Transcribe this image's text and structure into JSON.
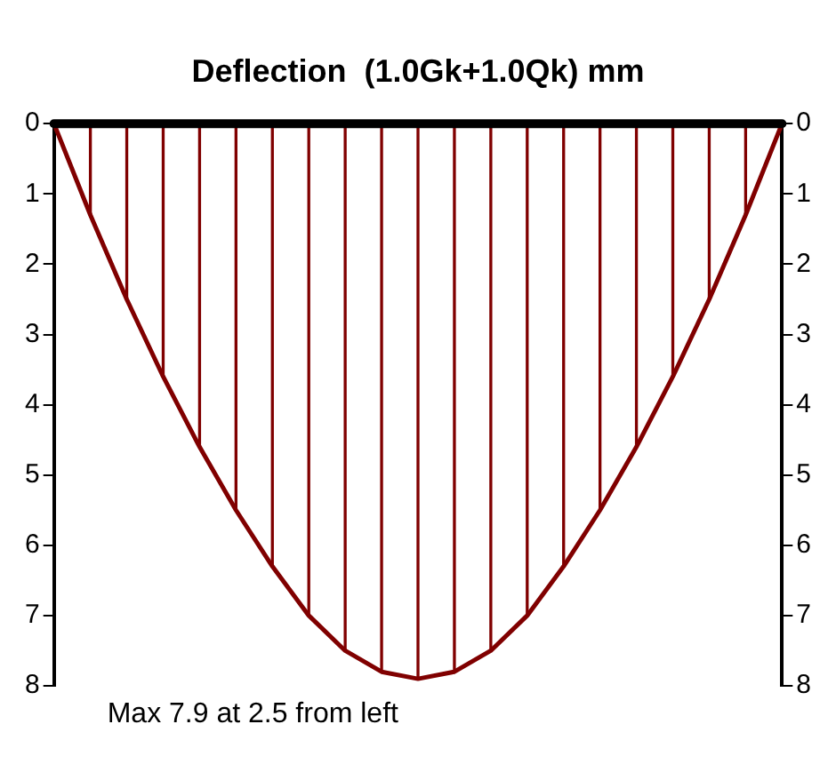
{
  "chart_data": {
    "type": "line",
    "title": "Deflection  (1.0Gk+1.0Qk) mm",
    "categories": [
      null,
      null,
      null,
      null,
      null,
      null,
      null,
      null,
      null,
      null,
      null,
      null,
      null,
      null,
      null,
      null,
      null,
      null,
      null,
      null,
      null
    ],
    "series": [
      {
        "type": "bar",
        "color": "#800000",
        "values": [
          0,
          1.3,
          2.5,
          3.6,
          4.6,
          5.5,
          6.3,
          7.0,
          7.5,
          7.8,
          7.9,
          7.8,
          7.5,
          7.0,
          6.3,
          5.5,
          4.6,
          3.6,
          2.5,
          1.3,
          0
        ]
      },
      {
        "color": "#800000",
        "values": [
          0,
          1.3,
          2.5,
          3.6,
          4.6,
          5.5,
          6.3,
          7.0,
          7.5,
          7.8,
          7.9,
          7.8,
          7.5,
          7.0,
          6.3,
          5.5,
          4.6,
          3.6,
          2.5,
          1.3,
          0
        ]
      }
    ],
    "ylim": [
      8,
      0
    ],
    "yticks": [
      0,
      1,
      2,
      3,
      4,
      5,
      6,
      7,
      8
    ],
    "y2lim": [
      8,
      0
    ],
    "y2ticks": [
      0,
      1,
      2,
      3,
      4,
      5,
      6,
      7,
      8
    ],
    "ref_lines": [
      {
        "axis": "y",
        "value": 0,
        "color": "#000000"
      }
    ],
    "annotations": [
      "Max 7.9 at 2.5 from left"
    ],
    "tick_labels": "y",
    "grid": false,
    "legend": false,
    "marker": "none",
    "line_style": "solid"
  }
}
